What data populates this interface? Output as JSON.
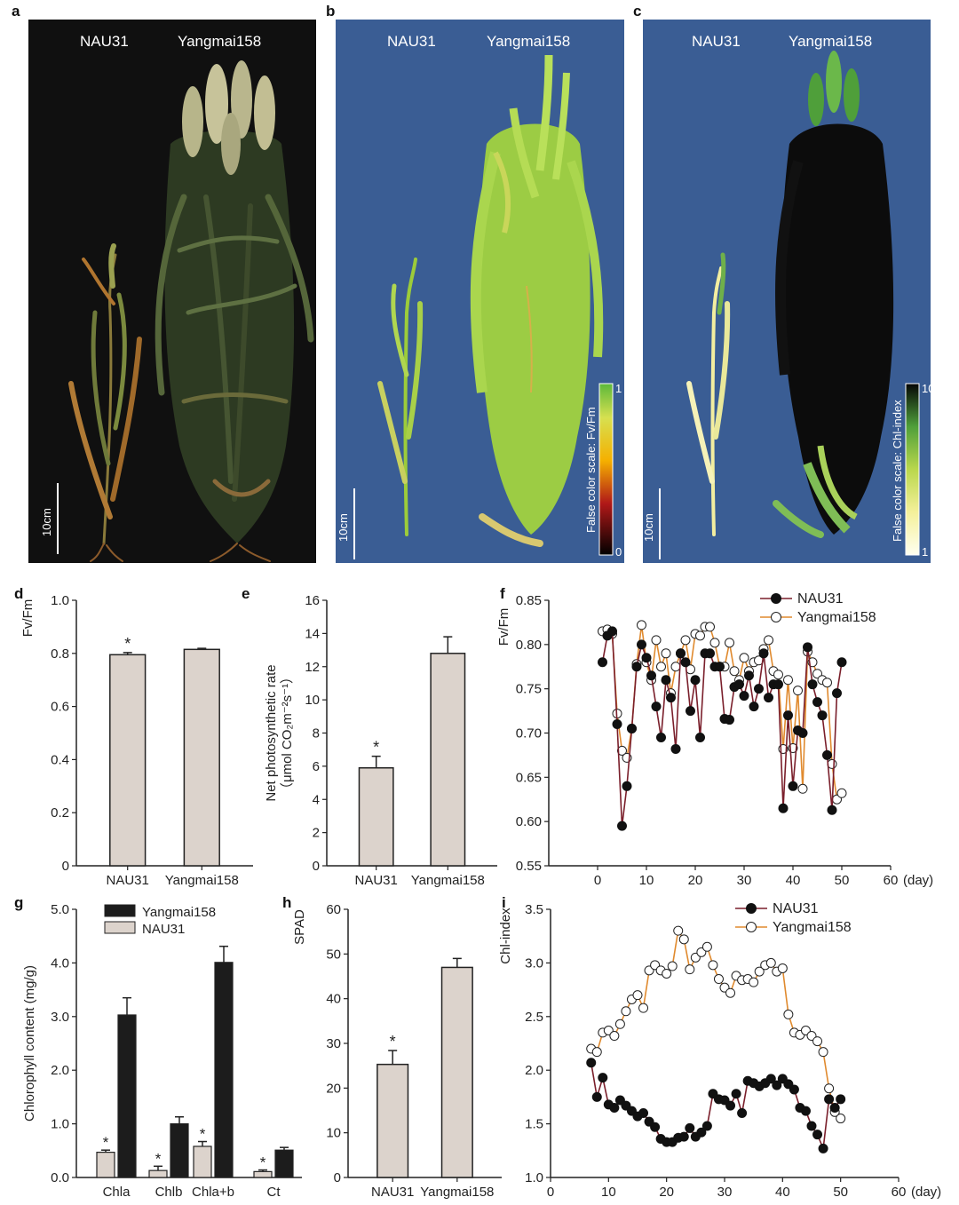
{
  "panels": {
    "a": {
      "letter": "a",
      "left_label": "NAU31",
      "right_label": "Yangmai158",
      "scale_label": "10cm"
    },
    "b": {
      "letter": "b",
      "left_label": "NAU31",
      "right_label": "Yangmai158",
      "scale_label": "10cm",
      "colorbar_label": "False color scale: Fv/Fm",
      "colorbar_max": "1",
      "colorbar_min": "0"
    },
    "c": {
      "letter": "c",
      "left_label": "NAU31",
      "right_label": "Yangmai158",
      "scale_label": "10cm",
      "colorbar_label": "False color scale: Chl-index",
      "colorbar_max": "10",
      "colorbar_min": "1"
    }
  },
  "colors": {
    "bar_fill": "#dcd3cc",
    "bar_dark": "#1c1c1c",
    "nau31_line": "#7a1f2b",
    "yangmai_line": "#e08a2e",
    "panel_a_bg": "#101010",
    "panel_bc_bg": "#3a5d94"
  },
  "chart_data": [
    {
      "id": "d",
      "type": "bar",
      "letter": "d",
      "ylabel": "Fv/Fm",
      "categories": [
        "NAU31",
        "Yangmai158"
      ],
      "values": [
        0.795,
        0.815
      ],
      "errors": [
        0.008,
        0.004
      ],
      "significance": [
        "*",
        ""
      ],
      "ylim": [
        0,
        1.0
      ],
      "yticks": [
        "0",
        "0.2",
        "0.4",
        "0.6",
        "0.8",
        "1.0"
      ]
    },
    {
      "id": "e",
      "type": "bar",
      "letter": "e",
      "ylabel": "Net photosynthetic rate",
      "ylabel2": "（μmol CO₂m⁻²s⁻¹）",
      "categories": [
        "NAU31",
        "Yangmai158"
      ],
      "values": [
        5.9,
        12.8
      ],
      "errors": [
        0.7,
        1.0
      ],
      "significance": [
        "*",
        ""
      ],
      "ylim": [
        0,
        16
      ],
      "yticks": [
        "0",
        "2",
        "4",
        "6",
        "8",
        "10",
        "12",
        "14",
        "16"
      ]
    },
    {
      "id": "f",
      "type": "line",
      "letter": "f",
      "ylabel": "Fv/Fm",
      "xlabel": "(day)",
      "ylim": [
        0.55,
        0.85
      ],
      "xlim": [
        -10,
        60
      ],
      "xticks": [
        "0",
        "10",
        "20",
        "30",
        "40",
        "50",
        "60"
      ],
      "yticks": [
        "0.55",
        "0.60",
        "0.65",
        "0.70",
        "0.75",
        "0.80",
        "0.85"
      ],
      "series": [
        {
          "name": "NAU31",
          "x": [
            1,
            2,
            3,
            4,
            5,
            6,
            7,
            8,
            9,
            10,
            11,
            12,
            13,
            14,
            15,
            16,
            17,
            18,
            19,
            20,
            21,
            22,
            23,
            24,
            25,
            26,
            27,
            28,
            29,
            30,
            31,
            32,
            33,
            34,
            35,
            36,
            37,
            38,
            39,
            40,
            41,
            42,
            43,
            44,
            45,
            46,
            47,
            48,
            49,
            50
          ],
          "y": [
            0.78,
            0.81,
            0.815,
            0.71,
            0.595,
            0.64,
            0.705,
            0.775,
            0.8,
            0.785,
            0.765,
            0.73,
            0.695,
            0.76,
            0.74,
            0.682,
            0.79,
            0.78,
            0.725,
            0.76,
            0.695,
            0.79,
            0.79,
            0.775,
            0.775,
            0.716,
            0.715,
            0.752,
            0.755,
            0.742,
            0.765,
            0.73,
            0.75,
            0.79,
            0.74,
            0.755,
            0.755,
            0.615,
            0.72,
            0.64,
            0.703,
            0.7,
            0.797,
            0.755,
            0.735,
            0.72,
            0.675,
            0.613,
            0.745,
            0.78
          ]
        },
        {
          "name": "Yangmai158",
          "x": [
            1,
            2,
            3,
            4,
            5,
            6,
            7,
            8,
            9,
            10,
            11,
            12,
            13,
            14,
            15,
            16,
            17,
            18,
            19,
            20,
            21,
            22,
            23,
            24,
            25,
            26,
            27,
            28,
            29,
            30,
            31,
            32,
            33,
            34,
            35,
            36,
            37,
            38,
            39,
            40,
            41,
            42,
            43,
            44,
            45,
            46,
            47,
            48,
            49,
            50
          ],
          "y": [
            0.815,
            0.817,
            0.812,
            0.722,
            0.68,
            0.672,
            0.705,
            0.778,
            0.822,
            0.78,
            0.76,
            0.805,
            0.775,
            0.79,
            0.745,
            0.775,
            0.79,
            0.805,
            0.772,
            0.812,
            0.81,
            0.82,
            0.82,
            0.802,
            0.775,
            0.775,
            0.802,
            0.77,
            0.76,
            0.785,
            0.77,
            0.78,
            0.782,
            0.795,
            0.805,
            0.77,
            0.766,
            0.682,
            0.76,
            0.683,
            0.748,
            0.637,
            0.792,
            0.78,
            0.767,
            0.76,
            0.757,
            0.665,
            0.625,
            0.632
          ]
        }
      ]
    },
    {
      "id": "g",
      "type": "bar",
      "letter": "g",
      "ylabel": "Chlorophyll content (mg/g)",
      "categories": [
        "Chla",
        "Chlb",
        "Chla+b",
        "Ct"
      ],
      "series": [
        {
          "name": "NAU31",
          "values": [
            0.47,
            0.13,
            0.58,
            0.11
          ],
          "errors": [
            0.04,
            0.08,
            0.09,
            0.03
          ],
          "significance": [
            "*",
            "*",
            "*",
            "*"
          ]
        },
        {
          "name": "Yangmai158",
          "values": [
            3.03,
            1.0,
            4.01,
            0.51
          ],
          "errors": [
            0.32,
            0.13,
            0.3,
            0.05
          ],
          "significance": [
            "",
            "",
            "",
            ""
          ]
        }
      ],
      "ylim": [
        0,
        5.0
      ],
      "yticks": [
        "0.0",
        "1.0",
        "2.0",
        "3.0",
        "4.0",
        "5.0"
      ],
      "legend": {
        "first": "Yangmai158",
        "second": "NAU31"
      }
    },
    {
      "id": "h",
      "type": "bar",
      "letter": "h",
      "ylabel": "SPAD",
      "categories": [
        "NAU31",
        "Yangmai158"
      ],
      "values": [
        25.3,
        47.0
      ],
      "errors": [
        3.1,
        2.0
      ],
      "significance": [
        "*",
        ""
      ],
      "ylim": [
        0,
        60
      ],
      "yticks": [
        "0",
        "10",
        "20",
        "30",
        "40",
        "50",
        "60"
      ]
    },
    {
      "id": "i",
      "type": "line",
      "letter": "i",
      "ylabel": "Chl-index",
      "xlabel": "(day)",
      "ylim": [
        1.0,
        3.5
      ],
      "xlim": [
        0,
        60
      ],
      "xticks": [
        "0",
        "10",
        "20",
        "30",
        "40",
        "50",
        "60"
      ],
      "yticks": [
        "1.0",
        "1.5",
        "2.0",
        "2.5",
        "3.0",
        "3.5"
      ],
      "series": [
        {
          "name": "NAU31",
          "x": [
            7,
            8,
            9,
            10,
            11,
            12,
            13,
            14,
            15,
            16,
            17,
            18,
            19,
            20,
            21,
            22,
            23,
            24,
            25,
            26,
            27,
            28,
            29,
            30,
            31,
            32,
            33,
            34,
            35,
            36,
            37,
            38,
            39,
            40,
            41,
            42,
            43,
            44,
            45,
            46,
            47,
            48,
            49,
            50
          ],
          "y": [
            2.07,
            1.75,
            1.93,
            1.68,
            1.65,
            1.72,
            1.67,
            1.62,
            1.57,
            1.6,
            1.52,
            1.47,
            1.36,
            1.33,
            1.33,
            1.37,
            1.38,
            1.46,
            1.38,
            1.42,
            1.48,
            1.78,
            1.73,
            1.72,
            1.67,
            1.78,
            1.6,
            1.9,
            1.88,
            1.85,
            1.88,
            1.92,
            1.86,
            1.92,
            1.87,
            1.82,
            1.65,
            1.62,
            1.48,
            1.4,
            1.27,
            1.73,
            1.65,
            1.73
          ]
        },
        {
          "name": "Yangmai158",
          "x": [
            7,
            8,
            9,
            10,
            11,
            12,
            13,
            14,
            15,
            16,
            17,
            18,
            19,
            20,
            21,
            22,
            23,
            24,
            25,
            26,
            27,
            28,
            29,
            30,
            31,
            32,
            33,
            34,
            35,
            36,
            37,
            38,
            39,
            40,
            41,
            42,
            43,
            44,
            45,
            46,
            47,
            48,
            49,
            50
          ],
          "y": [
            2.2,
            2.17,
            2.35,
            2.37,
            2.32,
            2.43,
            2.55,
            2.66,
            2.7,
            2.58,
            2.93,
            2.98,
            2.93,
            2.9,
            2.97,
            3.3,
            3.22,
            2.94,
            3.05,
            3.1,
            3.15,
            2.98,
            2.85,
            2.77,
            2.72,
            2.88,
            2.84,
            2.85,
            2.82,
            2.92,
            2.98,
            3.0,
            2.92,
            2.95,
            2.52,
            2.35,
            2.33,
            2.37,
            2.32,
            2.27,
            2.17,
            1.83,
            1.61,
            1.55
          ]
        }
      ]
    }
  ]
}
